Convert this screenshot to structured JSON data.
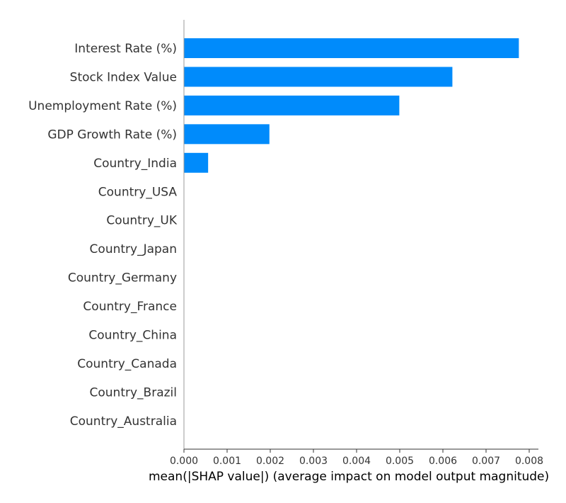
{
  "chart_data": {
    "type": "bar",
    "orientation": "horizontal",
    "categories": [
      "Interest Rate (%)",
      "Stock Index Value",
      "Unemployment Rate (%)",
      "GDP Growth Rate (%)",
      "Country_India",
      "Country_USA",
      "Country_UK",
      "Country_Japan",
      "Country_Germany",
      "Country_France",
      "Country_China",
      "Country_Canada",
      "Country_Brazil",
      "Country_Australia"
    ],
    "values": [
      0.00776,
      0.00622,
      0.00499,
      0.00198,
      0.00056,
      0,
      0,
      0,
      0,
      0,
      0,
      0,
      0,
      0
    ],
    "xlabel": "mean(|SHAP value|) (average impact on model output magnitude)",
    "ylabel": "",
    "title": "",
    "xlim": [
      0,
      0.00815
    ],
    "xticks": [
      "0.000",
      "0.001",
      "0.002",
      "0.003",
      "0.004",
      "0.005",
      "0.006",
      "0.007",
      "0.008"
    ],
    "bar_color": "#008bfb",
    "grid": false,
    "legend": false
  }
}
